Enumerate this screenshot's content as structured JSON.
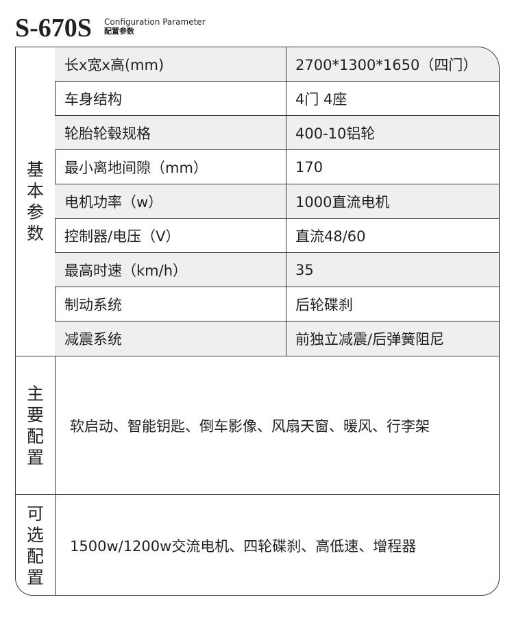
{
  "header": {
    "model": "S-670S",
    "subtitle_en": "Configuration Parameter",
    "subtitle_cn": "配置参数"
  },
  "basic": {
    "label": [
      "基",
      "本",
      "参",
      "数"
    ],
    "rows": [
      {
        "key": "长x宽x高(mm)",
        "value": "2700*1300*1650（四门）"
      },
      {
        "key": "车身结构",
        "value": "4门 4座"
      },
      {
        "key": "轮胎轮毂规格",
        "value": "400-10铝轮"
      },
      {
        "key": "最小离地间隙（mm）",
        "value": "170"
      },
      {
        "key": "电机功率（w）",
        "value": "1000直流电机"
      },
      {
        "key": "控制器/电压（V）",
        "value": "直流48/60"
      },
      {
        "key": "最高时速（km/h）",
        "value": "35"
      },
      {
        "key": "制动系统",
        "value": "后轮碟刹"
      },
      {
        "key": "减震系统",
        "value": "前独立减震/后弹簧阻尼"
      }
    ]
  },
  "main_config": {
    "label": [
      "主",
      "要",
      "配",
      "置"
    ],
    "value": "软启动、智能钥匙、倒车影像、风扇天窗、暖风、行李架"
  },
  "optional_config": {
    "label": [
      "可",
      "选",
      "配",
      "置"
    ],
    "value": "1500w/1200w交流电机、四轮碟刹、高低速、增程器"
  }
}
